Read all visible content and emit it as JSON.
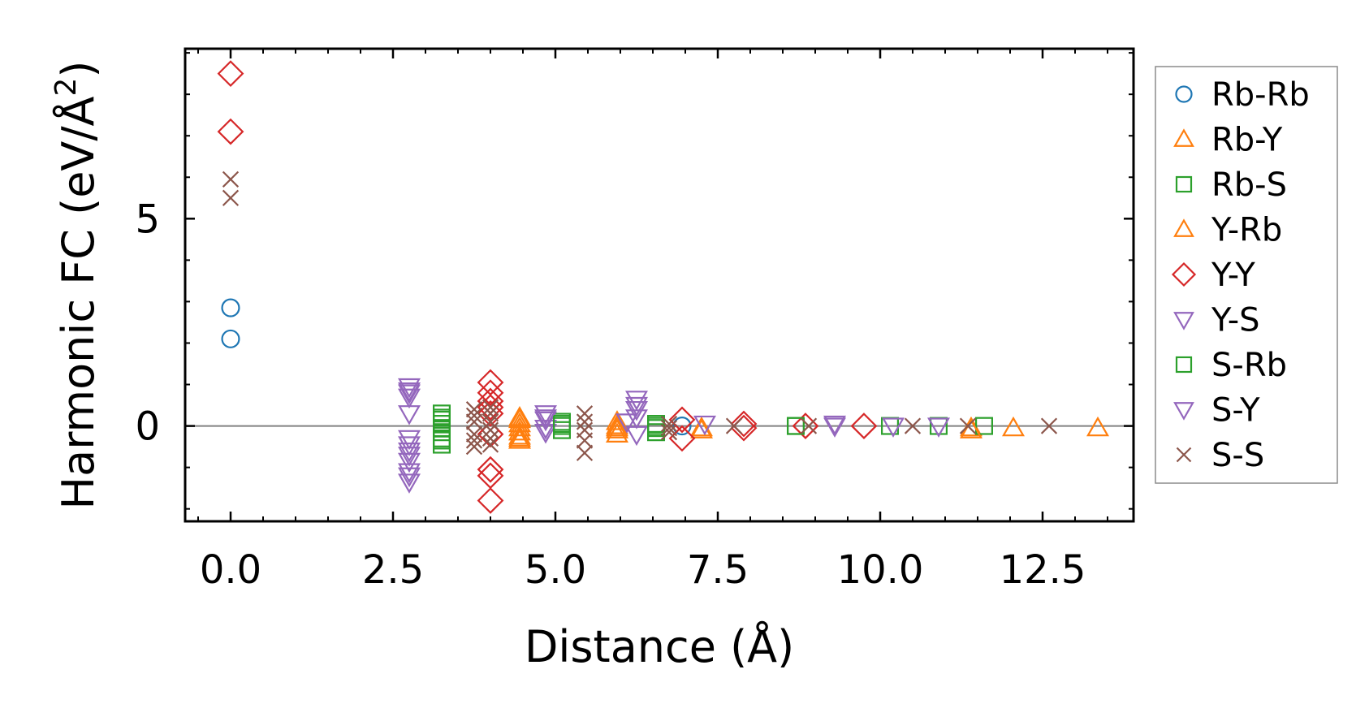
{
  "chart_data": {
    "type": "scatter",
    "title": "",
    "xlabel": "Distance (Å)",
    "ylabel": "Harmonic FC (eV/Å²)",
    "ylabel_main": "Harmonic FC (eV/Å",
    "ylabel_sup": "2",
    "ylabel_close": ")",
    "xlim": [
      -0.7,
      13.9
    ],
    "ylim": [
      -2.3,
      9.1
    ],
    "xticks": [
      0.0,
      2.5,
      5.0,
      7.5,
      10.0,
      12.5
    ],
    "xtick_labels": [
      "0.0",
      "2.5",
      "5.0",
      "7.5",
      "10.0",
      "12.5"
    ],
    "yticks": [
      0,
      5
    ],
    "ytick_labels": [
      "0",
      "5"
    ],
    "x_minor_step": 0.5,
    "y_minor_step": 1,
    "zero_line": true,
    "legend_position": "outside-right",
    "series": [
      {
        "name": "Rb-Rb",
        "marker": "circle",
        "color": "#1f77b4",
        "x": [
          0.0,
          0.0,
          6.95
        ],
        "y": [
          2.85,
          2.1,
          0.0
        ]
      },
      {
        "name": "Rb-Y",
        "marker": "triangle-up",
        "color": "#ff7f0e",
        "x": [
          4.45,
          4.45,
          4.45,
          4.45,
          4.45,
          4.45,
          5.95,
          5.95,
          5.95,
          5.95,
          7.25,
          11.4,
          12.05,
          13.35
        ],
        "y": [
          0.2,
          0.05,
          -0.05,
          -0.15,
          -0.25,
          -0.35,
          0.1,
          0.0,
          -0.1,
          -0.2,
          -0.05,
          -0.05,
          -0.05,
          -0.05
        ]
      },
      {
        "name": "Rb-S",
        "marker": "square",
        "color": "#2ca02c",
        "x": [
          3.25,
          3.25,
          3.25,
          3.25,
          3.25,
          3.25,
          3.25,
          5.1,
          5.1,
          5.1,
          6.55,
          6.55,
          6.55,
          8.7,
          10.15,
          10.9,
          11.6
        ],
        "y": [
          0.3,
          0.15,
          0.05,
          -0.05,
          -0.15,
          -0.3,
          -0.45,
          0.1,
          0.0,
          -0.1,
          0.05,
          -0.05,
          -0.15,
          0.0,
          0.0,
          0.0,
          0.0
        ]
      },
      {
        "name": "Y-Rb",
        "marker": "triangle-up",
        "color": "#ff7f0e",
        "x": [
          4.45,
          4.45,
          5.95,
          7.25,
          11.4
        ],
        "y": [
          0.15,
          -0.3,
          -0.05,
          -0.1,
          -0.1
        ]
      },
      {
        "name": "Y-Y",
        "marker": "diamond",
        "color": "#d62728",
        "x": [
          0.0,
          0.0,
          4.0,
          4.0,
          4.0,
          4.0,
          4.0,
          4.0,
          4.0,
          4.0,
          4.0,
          6.95,
          6.95,
          7.9,
          7.9,
          8.85,
          9.75
        ],
        "y": [
          8.5,
          7.1,
          1.05,
          0.8,
          0.6,
          0.45,
          -0.2,
          -1.05,
          -1.2,
          -1.8,
          0.3,
          0.15,
          -0.3,
          0.05,
          -0.05,
          0.0,
          0.0
        ]
      },
      {
        "name": "Y-S",
        "marker": "triangle-down",
        "color": "#9467bd",
        "x": [
          2.75,
          2.75,
          2.75,
          2.75,
          2.75,
          2.75,
          2.75,
          2.75,
          2.75,
          2.75,
          2.75,
          4.85,
          4.85,
          4.85,
          4.85,
          6.1,
          6.25,
          6.25,
          6.25,
          6.25,
          7.3,
          9.3,
          10.2,
          10.9
        ],
        "y": [
          0.95,
          0.85,
          0.7,
          0.3,
          -0.3,
          -0.45,
          -0.6,
          -0.7,
          -0.85,
          -1.2,
          -1.35,
          0.3,
          0.15,
          -0.05,
          -0.15,
          0.1,
          0.65,
          0.4,
          0.2,
          -0.2,
          0.05,
          0.05,
          0.0,
          0.0
        ]
      },
      {
        "name": "S-Rb",
        "marker": "square",
        "color": "#2ca02c",
        "x": [
          3.25,
          3.25,
          5.1,
          6.55,
          8.7
        ],
        "y": [
          0.2,
          -0.35,
          0.05,
          0.0,
          0.0
        ]
      },
      {
        "name": "S-Y",
        "marker": "triangle-down",
        "color": "#9467bd",
        "x": [
          2.75,
          2.75,
          4.85,
          6.25,
          9.3
        ],
        "y": [
          0.8,
          -1.1,
          0.2,
          0.5,
          0.0
        ]
      },
      {
        "name": "S-S",
        "marker": "x",
        "color": "#8c564b",
        "x": [
          0.0,
          0.0,
          3.75,
          3.75,
          3.75,
          3.75,
          3.75,
          3.75,
          4.0,
          4.0,
          4.0,
          4.0,
          4.0,
          4.0,
          5.45,
          5.45,
          5.45,
          5.45,
          5.45,
          6.75,
          6.75,
          6.75,
          7.75,
          8.9,
          10.5,
          11.35,
          12.6
        ],
        "y": [
          5.95,
          5.5,
          0.4,
          0.25,
          0.1,
          -0.2,
          -0.35,
          -0.5,
          0.45,
          0.3,
          0.1,
          -0.1,
          -0.3,
          -0.45,
          0.3,
          0.1,
          -0.1,
          -0.35,
          -0.65,
          0.05,
          -0.05,
          -0.15,
          0.0,
          0.0,
          0.0,
          0.0,
          0.0
        ]
      }
    ]
  }
}
